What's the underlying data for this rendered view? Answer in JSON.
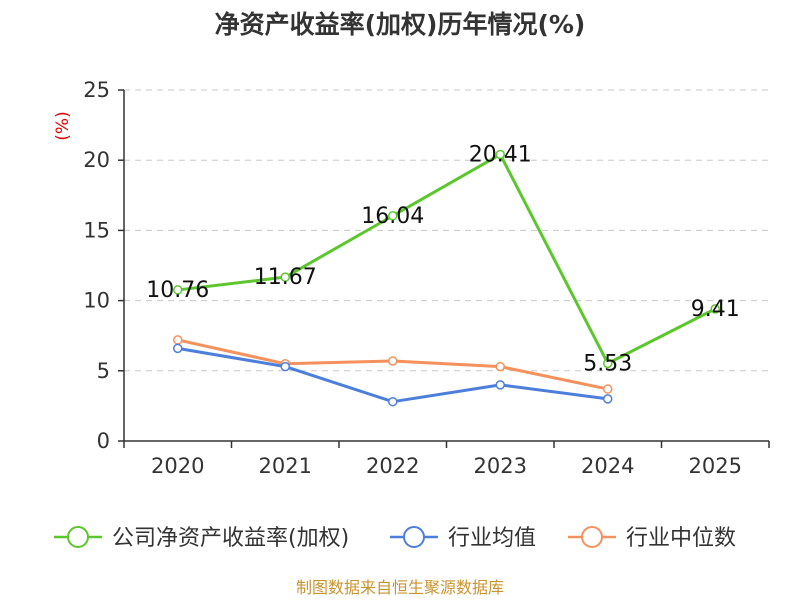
{
  "chart_data": {
    "type": "line",
    "title": "净资产收益率(加权)历年情况(%)",
    "ylabel": "(%)",
    "xlabel": "",
    "categories": [
      "2020",
      "2021",
      "2022",
      "2023",
      "2024",
      "2025"
    ],
    "ylim": [
      0,
      25
    ],
    "yticks": [
      0,
      5,
      10,
      15,
      20,
      25
    ],
    "grid": true,
    "legend_position": "bottom",
    "series": [
      {
        "name": "公司净资产收益率(加权)",
        "color": "#5cc72c",
        "values": [
          10.76,
          11.67,
          16.04,
          20.41,
          5.53,
          9.41
        ],
        "labels": [
          "10.76",
          "11.67",
          "16.04",
          "20.41",
          "5.53",
          "9.41"
        ]
      },
      {
        "name": "行业均值",
        "color": "#4c7fdb",
        "values": [
          6.6,
          5.3,
          2.8,
          4.0,
          3.0,
          null
        ]
      },
      {
        "name": "行业中位数",
        "color": "#f5915c",
        "values": [
          7.2,
          5.5,
          5.7,
          5.3,
          3.7,
          null
        ]
      }
    ]
  },
  "source": "制图数据来自恒生聚源数据库"
}
